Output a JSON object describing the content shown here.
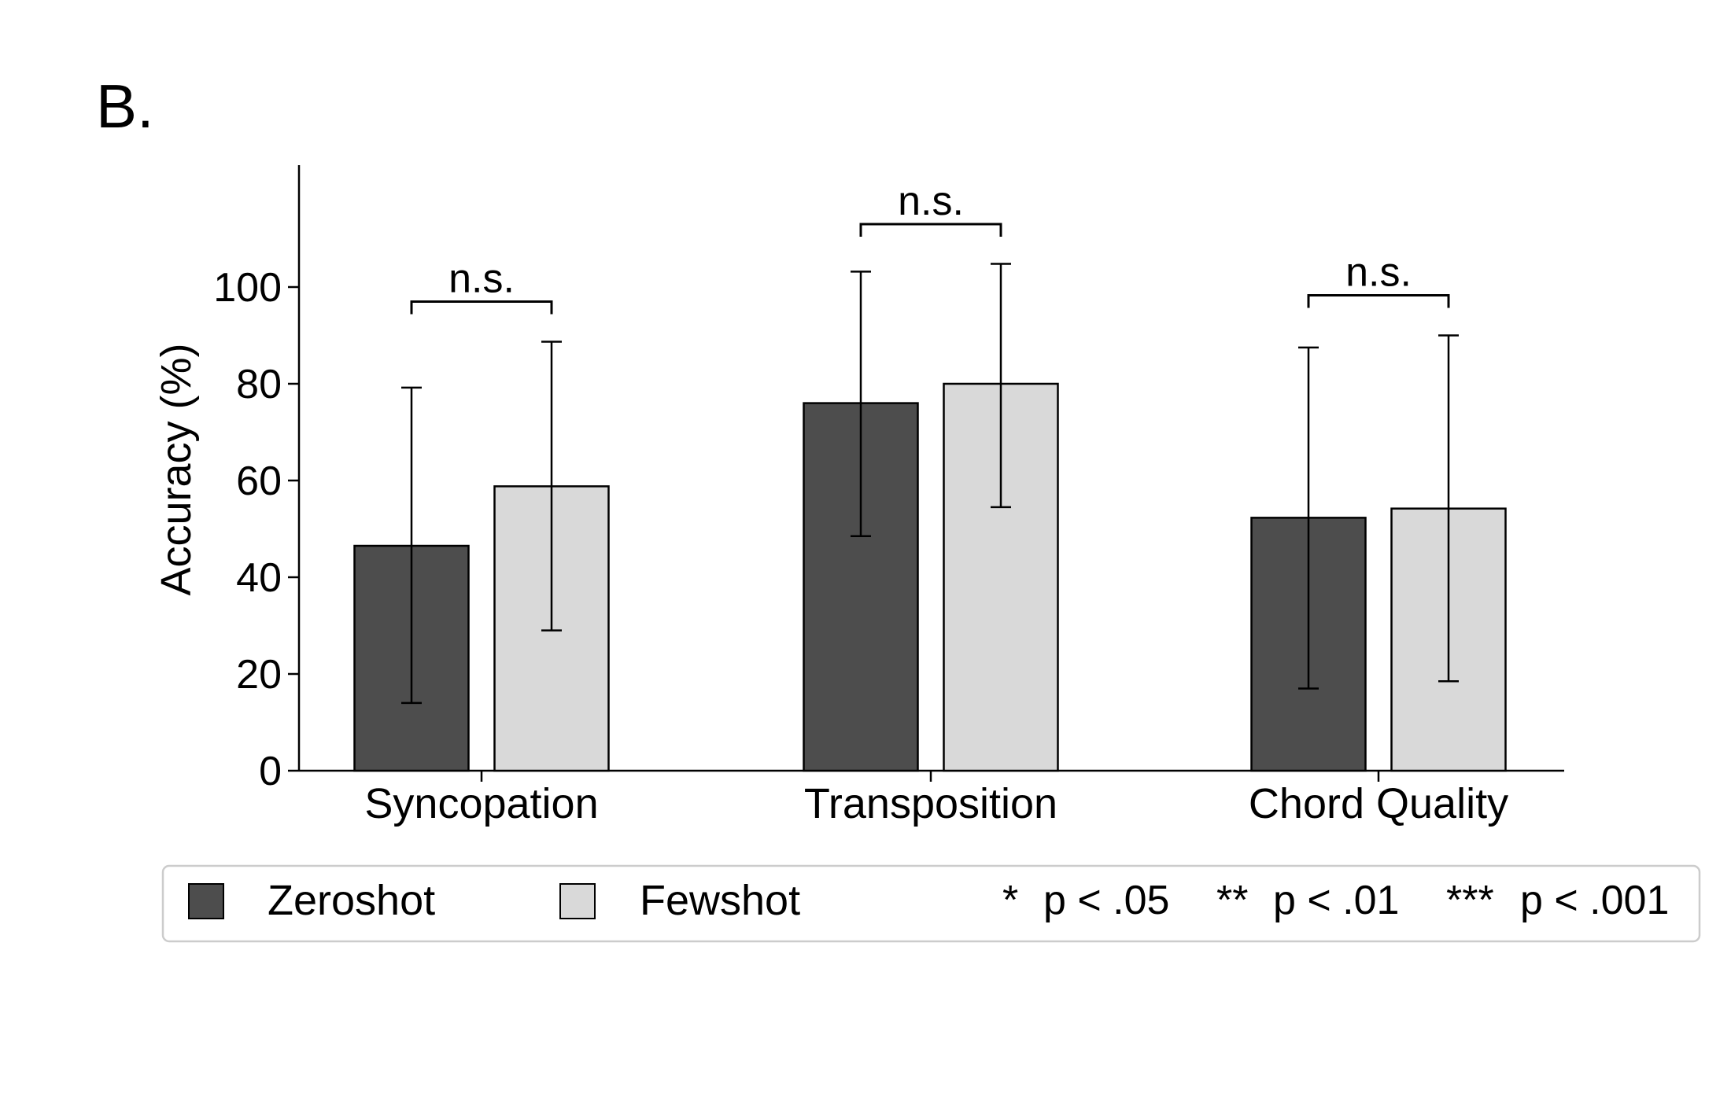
{
  "panel_label": "B.",
  "chart_data": {
    "type": "bar",
    "title": "",
    "xlabel": "",
    "ylabel": "Accuracy (%)",
    "ylim": [
      0,
      125
    ],
    "yticks": [
      0,
      20,
      40,
      60,
      80,
      100
    ],
    "categories": [
      "Syncopation",
      "Transposition",
      "Chord Quality"
    ],
    "series": [
      {
        "name": "Zeroshot",
        "color": "#4d4d4d",
        "values": [
          46.5,
          76,
          52.3
        ],
        "err_low": [
          14,
          48.5,
          17
        ],
        "err_high": [
          79.2,
          103.2,
          87.5
        ]
      },
      {
        "name": "Fewshot",
        "color": "#d9d9d9",
        "values": [
          58.8,
          80,
          54.2
        ],
        "err_low": [
          29,
          54.5,
          18.5
        ],
        "err_high": [
          88.7,
          104.8,
          90
        ]
      }
    ],
    "significance": [
      {
        "category": "Syncopation",
        "label": "n.s.",
        "bracket_y": 97
      },
      {
        "category": "Transposition",
        "label": "n.s.",
        "bracket_y": 113
      },
      {
        "category": "Chord Quality",
        "label": "n.s.",
        "bracket_y": 98.3
      }
    ],
    "legend": {
      "position": "bottom",
      "items": [
        {
          "label": "Zeroshot",
          "color": "#4d4d4d"
        },
        {
          "label": "Fewshot",
          "color": "#d9d9d9"
        }
      ],
      "significance_key": [
        {
          "stars": "*",
          "text": "p < .05"
        },
        {
          "stars": "**",
          "text": "p < .01"
        },
        {
          "stars": "***",
          "text": "p < .001"
        }
      ]
    }
  }
}
